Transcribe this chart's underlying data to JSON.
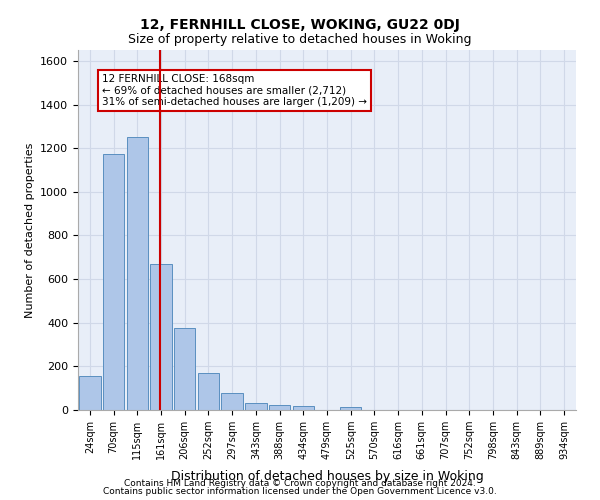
{
  "title1": "12, FERNHILL CLOSE, WOKING, GU22 0DJ",
  "title2": "Size of property relative to detached houses in Woking",
  "xlabel": "Distribution of detached houses by size in Woking",
  "ylabel": "Number of detached properties",
  "categories": [
    "24sqm",
    "70sqm",
    "115sqm",
    "161sqm",
    "206sqm",
    "252sqm",
    "297sqm",
    "343sqm",
    "388sqm",
    "434sqm",
    "479sqm",
    "525sqm",
    "570sqm",
    "616sqm",
    "661sqm",
    "707sqm",
    "752sqm",
    "798sqm",
    "843sqm",
    "889sqm",
    "934sqm"
  ],
  "values": [
    155,
    1175,
    1250,
    670,
    375,
    170,
    80,
    30,
    25,
    18,
    0,
    13,
    0,
    0,
    0,
    0,
    0,
    0,
    0,
    0,
    0
  ],
  "bar_color": "#aec6e8",
  "bar_edge_color": "#5a8fc0",
  "vline_x": 3,
  "vline_color": "#cc0000",
  "annotation_text": "12 FERNHILL CLOSE: 168sqm\n← 69% of detached houses are smaller (2,712)\n31% of semi-detached houses are larger (1,209) →",
  "annotation_box_color": "#ffffff",
  "annotation_box_edge": "#cc0000",
  "ylim": [
    0,
    1650
  ],
  "yticks": [
    0,
    200,
    400,
    600,
    800,
    1000,
    1200,
    1400,
    1600
  ],
  "grid_color": "#d0d8e8",
  "background_color": "#e8eef8",
  "footer_line1": "Contains HM Land Registry data © Crown copyright and database right 2024.",
  "footer_line2": "Contains public sector information licensed under the Open Government Licence v3.0."
}
